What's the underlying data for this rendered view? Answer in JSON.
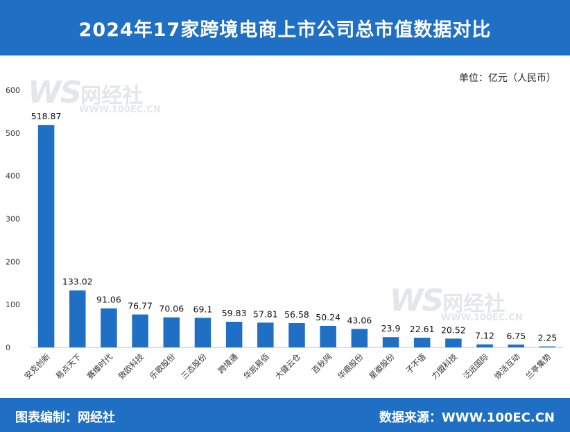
{
  "title": "2024年17家跨境电商上市公司总市值数据对比",
  "unit_label": "单位：亿元（人民币）",
  "footer": {
    "left": "图表编制：网经社",
    "right": "数据来源：WWW.100EC.CN"
  },
  "watermark": {
    "logo": "WS",
    "name": "网经社",
    "url": "WWW.100EC.CN"
  },
  "colors": {
    "bar": "#1f6fc4",
    "header": "#1f6fc4"
  },
  "chart_data": {
    "type": "bar",
    "title": "2024年17家跨境电商上市公司总市值数据对比",
    "xlabel": "",
    "ylabel": "",
    "unit": "亿元（人民币）",
    "ylim": [
      0,
      600
    ],
    "yticks": [
      0,
      100,
      200,
      300,
      400,
      500,
      600
    ],
    "grid": false,
    "categories": [
      "安克创新",
      "易点天下",
      "赛维时代",
      "致欧科技",
      "乐歌股份",
      "三态股份",
      "跨境通",
      "华凯易佰",
      "大健云仓",
      "百秋网",
      "华鼎股份",
      "星徽股份",
      "子不语",
      "力盟科技",
      "泛远国际",
      "焕活互动",
      "兰亭集势"
    ],
    "values": [
      518.87,
      133.02,
      91.06,
      76.77,
      70.06,
      69.1,
      59.83,
      57.81,
      56.58,
      50.24,
      43.06,
      23.9,
      22.61,
      20.52,
      7.12,
      6.75,
      2.25
    ],
    "value_labels": [
      "518.87",
      "133.02",
      "91.06",
      "76.77",
      "70.06",
      "69.1",
      "59.83",
      "57.81",
      "56.58",
      "50.24",
      "43.06",
      "23.9",
      "22.61",
      "20.52",
      "7.12",
      "6.75",
      "2.25"
    ]
  }
}
